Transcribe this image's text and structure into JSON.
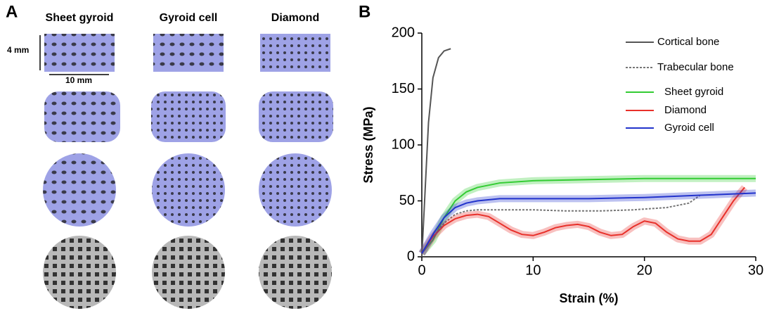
{
  "panel_a": {
    "label": "A",
    "columns": [
      "Sheet gyroid",
      "Gyroid cell",
      "Diamond"
    ],
    "height_label": "4 mm",
    "width_label": "10 mm"
  },
  "panel_b": {
    "label": "B"
  },
  "chart_data": {
    "type": "line",
    "x_label": "Strain (%)",
    "y_label": "Stress (MPa)",
    "xlim": [
      0,
      30
    ],
    "ylim": [
      0,
      200
    ],
    "xticks": [
      0,
      10,
      20,
      30
    ],
    "yticks": [
      0,
      50,
      100,
      150,
      200
    ],
    "grid": false,
    "series": [
      {
        "name": "Cortical bone",
        "color": "#555555",
        "style": "solid",
        "x": [
          0,
          0.3,
          0.6,
          1,
          1.5,
          2,
          2.6
        ],
        "values": [
          0,
          60,
          120,
          160,
          178,
          184,
          186
        ]
      },
      {
        "name": "Trabecular bone",
        "color": "#777777",
        "style": "dashed",
        "x": [
          0,
          1,
          2,
          3,
          4,
          5,
          7,
          10,
          13,
          16,
          19,
          22,
          24,
          25
        ],
        "values": [
          3,
          18,
          30,
          38,
          41,
          42,
          42,
          42,
          41,
          41,
          42,
          44,
          48,
          55
        ]
      },
      {
        "name": "Sheet gyroid",
        "color": "#33cc33",
        "style": "solid",
        "band": true,
        "x": [
          0,
          1,
          2,
          3,
          4,
          5,
          7,
          10,
          15,
          20,
          25,
          30
        ],
        "values": [
          3,
          15,
          35,
          50,
          58,
          62,
          66,
          68,
          69,
          70,
          70,
          70
        ]
      },
      {
        "name": "Diamond",
        "color": "#e8302a",
        "style": "solid",
        "band": true,
        "x": [
          0,
          1,
          2,
          3,
          4,
          5,
          6,
          7,
          8,
          9,
          10,
          11,
          12,
          13,
          14,
          15,
          16,
          17,
          18,
          19,
          20,
          21,
          22,
          23,
          24,
          25,
          26,
          27,
          28,
          29
        ],
        "values": [
          3,
          18,
          28,
          34,
          37,
          38,
          36,
          30,
          24,
          20,
          19,
          22,
          26,
          28,
          29,
          27,
          22,
          19,
          20,
          27,
          32,
          30,
          22,
          16,
          14,
          14,
          20,
          35,
          50,
          62
        ]
      },
      {
        "name": "Gyroid cell",
        "color": "#2233cc",
        "style": "solid",
        "band": true,
        "x": [
          0,
          1,
          2,
          3,
          4,
          5,
          7,
          10,
          15,
          20,
          25,
          30
        ],
        "values": [
          3,
          20,
          35,
          44,
          48,
          50,
          52,
          52,
          52,
          53,
          55,
          57
        ]
      }
    ]
  }
}
